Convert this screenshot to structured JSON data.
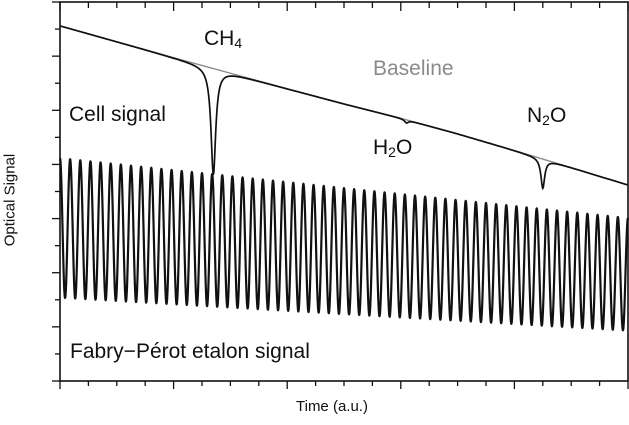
{
  "chart_data": {
    "type": "line",
    "xlabel": "Time  (a.u.)",
    "ylabel": "Optical Signal",
    "xlim": [
      0,
      1
    ],
    "ylim": [
      0,
      1
    ],
    "grid": false,
    "series": [
      {
        "name": "Baseline",
        "color": "#8a8a8a",
        "x": [
          0,
          0.1,
          0.2,
          0.3,
          0.4,
          0.5,
          0.6,
          0.7,
          0.8,
          0.9,
          1.0
        ],
        "y": [
          0.937,
          0.895,
          0.853,
          0.812,
          0.771,
          0.731,
          0.693,
          0.652,
          0.608,
          0.563,
          0.517
        ]
      },
      {
        "name": "Cell signal",
        "color": "#111111",
        "baseline_ref": "Baseline",
        "absorption_lines": [
          {
            "species": "CH4",
            "x": 0.27,
            "depth": 0.28,
            "width": 0.005
          },
          {
            "species": "H2O",
            "x": 0.61,
            "depth": 0.008,
            "width": 0.004
          },
          {
            "species": "N2O",
            "x": 0.85,
            "depth": 0.077,
            "width": 0.004
          }
        ]
      },
      {
        "name": "Fabry–Pérot etalon signal",
        "color": "#111111",
        "fringes": 56,
        "upper_envelope": [
          [
            0,
            0.588
          ],
          [
            1,
            0.43
          ]
        ],
        "lower_envelope": [
          [
            0,
            0.22
          ],
          [
            1,
            0.133
          ]
        ]
      }
    ],
    "annotations": [
      {
        "id": "ch4",
        "parts": [
          [
            "CH",
            ""
          ],
          [
            "4",
            "sub"
          ]
        ]
      },
      {
        "id": "baseline",
        "parts": [
          [
            "Baseline",
            ""
          ]
        ]
      },
      {
        "id": "cell",
        "parts": [
          [
            "Cell signal",
            ""
          ]
        ]
      },
      {
        "id": "h2o",
        "parts": [
          [
            "H",
            ""
          ],
          [
            "2",
            "sub"
          ],
          [
            "O",
            ""
          ]
        ]
      },
      {
        "id": "n2o",
        "parts": [
          [
            "N",
            ""
          ],
          [
            "2",
            "sub"
          ],
          [
            "O",
            ""
          ]
        ]
      },
      {
        "id": "fp",
        "parts": [
          [
            "Fabry−Pérot etalon signal",
            ""
          ]
        ]
      }
    ]
  }
}
